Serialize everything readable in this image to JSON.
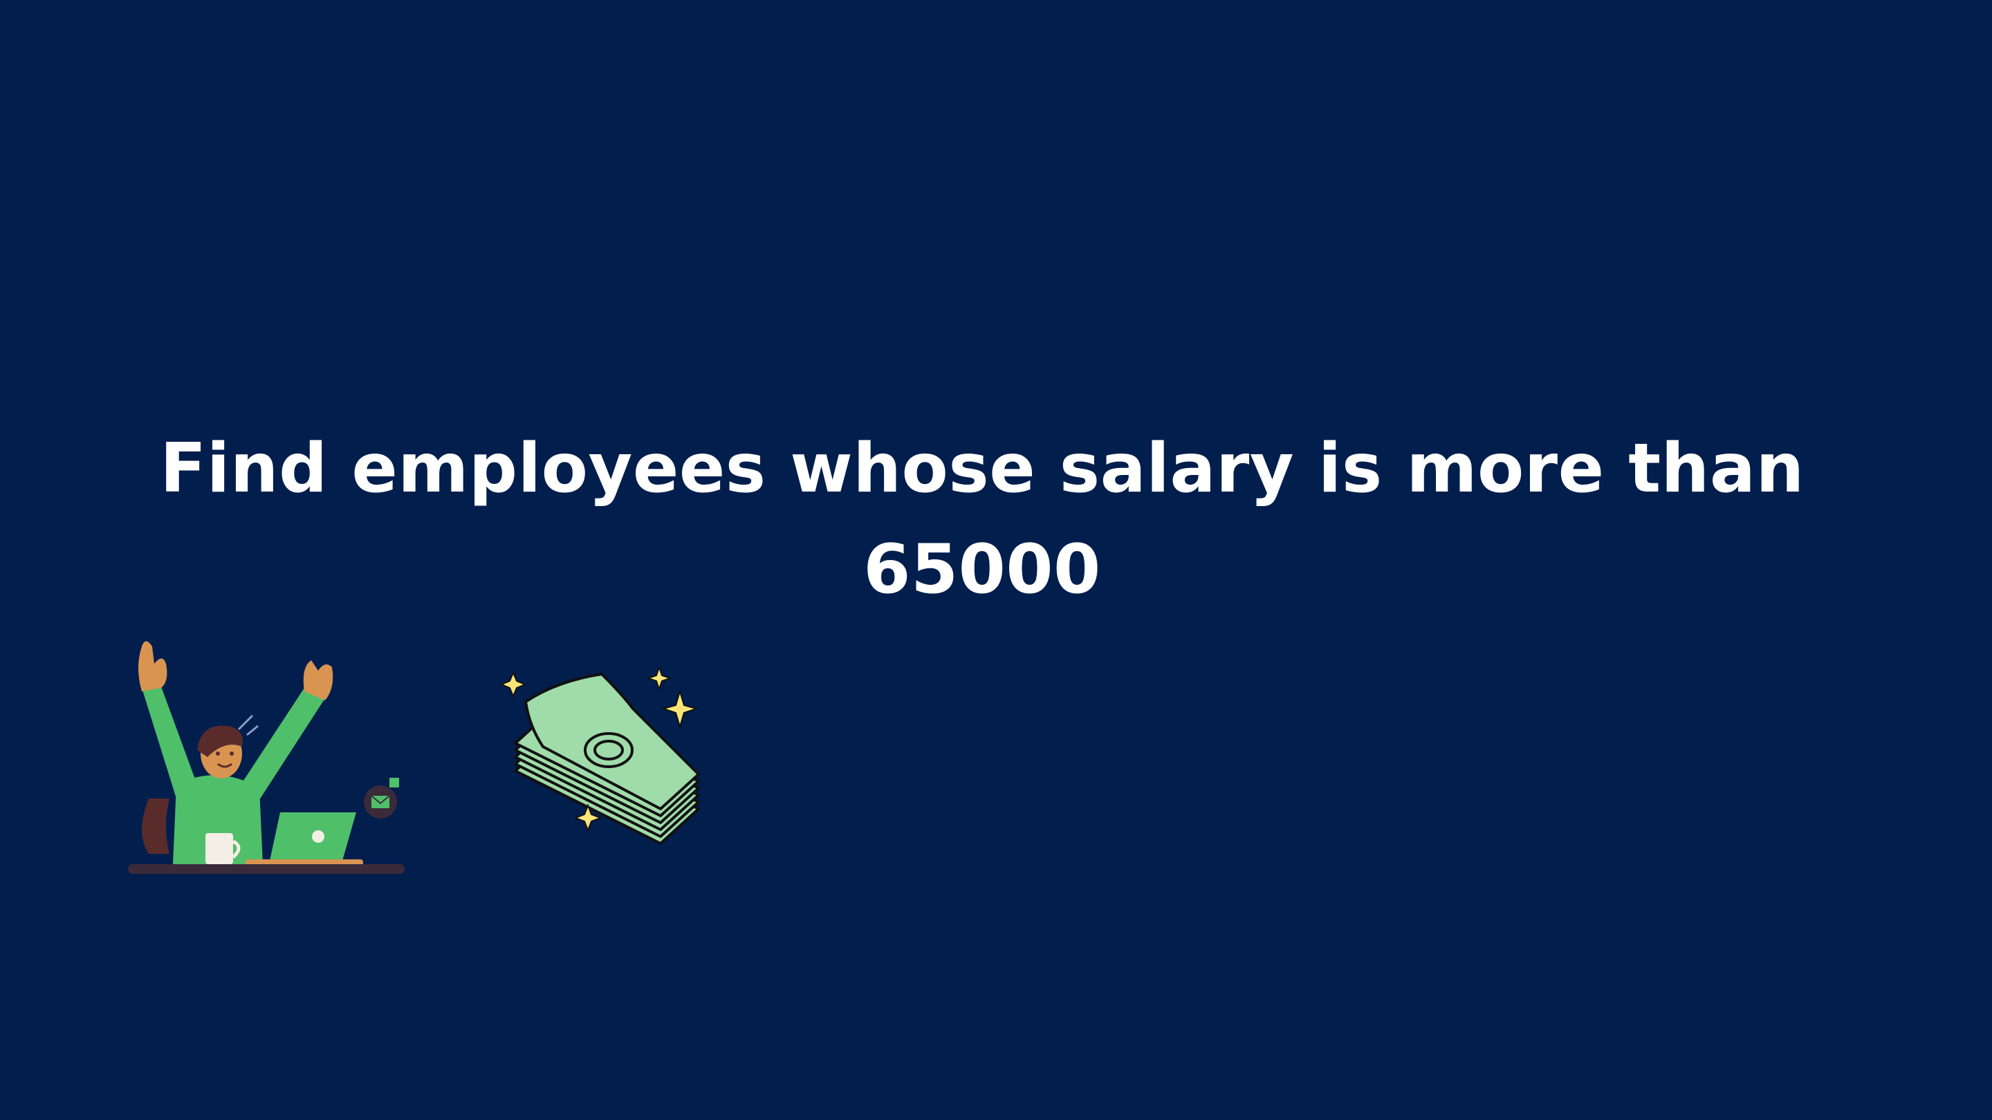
{
  "slide": {
    "title_line1": "Find employees whose salary is more than",
    "title_line2": "65000",
    "background_color": "#011e4d",
    "text_color": "#ffffff"
  },
  "illustrations": {
    "celebrating_person": "celebrating-person-illustration",
    "money_stack": "money-stack-illustration"
  }
}
